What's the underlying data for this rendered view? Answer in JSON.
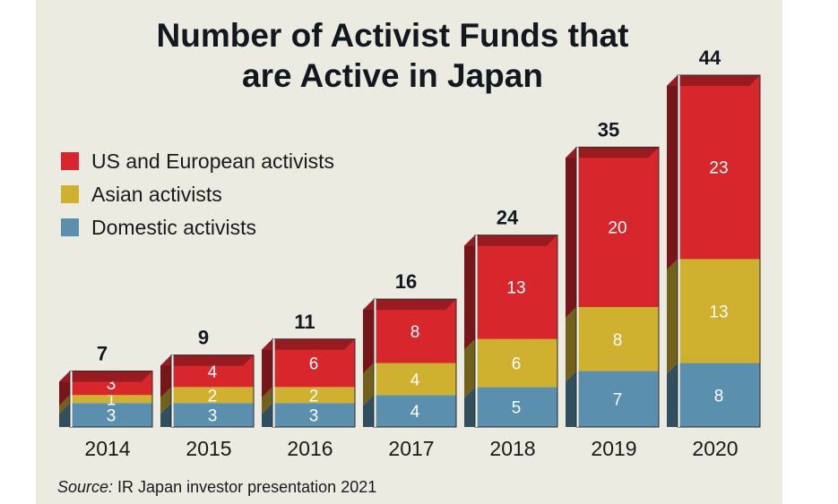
{
  "chart_data": {
    "type": "bar",
    "stacked": true,
    "title_lines": [
      "Number of Activist Funds that",
      "are Active in Japan"
    ],
    "categories": [
      "2014",
      "2015",
      "2016",
      "2017",
      "2018",
      "2019",
      "2020"
    ],
    "series": [
      {
        "name": "Domestic activists",
        "color": "#5a8fae",
        "values": [
          3,
          3,
          3,
          4,
          5,
          7,
          8
        ]
      },
      {
        "name": "Asian activists",
        "color": "#d0b02f",
        "values": [
          1,
          2,
          2,
          4,
          6,
          8,
          13
        ]
      },
      {
        "name": "US and European activists",
        "color": "#d8262d",
        "values": [
          3,
          4,
          6,
          8,
          13,
          20,
          23
        ]
      }
    ],
    "totals": [
      7,
      9,
      11,
      16,
      24,
      35,
      44
    ],
    "legend_order": [
      "US and European activists",
      "Asian activists",
      "Domestic activists"
    ],
    "legend_position": "top-left",
    "ylim": [
      0,
      44
    ],
    "grid": false
  },
  "source": {
    "label": "Source:",
    "text": " IR Japan investor presentation 2021"
  }
}
